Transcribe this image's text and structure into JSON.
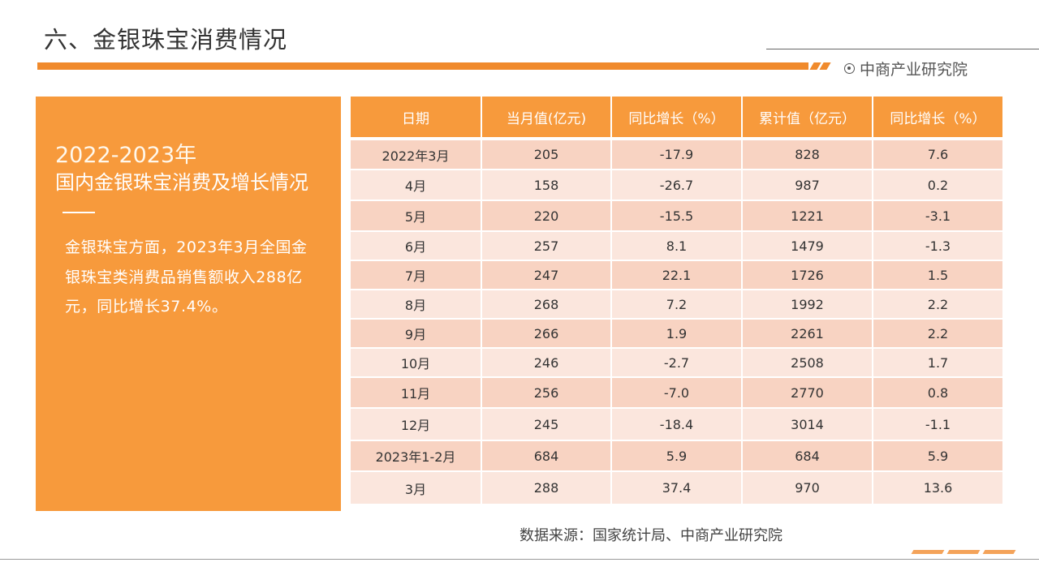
{
  "page": {
    "title": "六、金银珠宝消费情况",
    "brand": "中商产业研究院"
  },
  "panel": {
    "year_range": "2022-2023年",
    "heading": "国内金银珠宝消费及增长情况",
    "body": "金银珠宝方面，2023年3月全国金银珠宝类消费品销售额收入288亿元，同比增长37.4%。"
  },
  "table": {
    "headers": [
      "日期",
      "当月值(亿元)",
      "同比增长（%）",
      "累计值（亿元）",
      "同比增长（%）"
    ],
    "rows": [
      [
        "2022年3月",
        "205",
        "-17.9",
        "828",
        "7.6"
      ],
      [
        "4月",
        "158",
        "-26.7",
        "987",
        "0.2"
      ],
      [
        "5月",
        "220",
        "-15.5",
        "1221",
        "-3.1"
      ],
      [
        "6月",
        "257",
        "8.1",
        "1479",
        "-1.3"
      ],
      [
        "7月",
        "247",
        "22.1",
        "1726",
        "1.5"
      ],
      [
        "8月",
        "268",
        "7.2",
        "1992",
        "2.2"
      ],
      [
        "9月",
        "266",
        "1.9",
        "2261",
        "2.2"
      ],
      [
        "10月",
        "246",
        "-2.7",
        "2508",
        "1.7"
      ],
      [
        "11月",
        "256",
        "-7.0",
        "2770",
        "0.8"
      ],
      [
        "12月",
        "245",
        "-18.4",
        "3014",
        "-1.1"
      ],
      [
        "2023年1-2月",
        "684",
        "5.9",
        "684",
        "5.9"
      ],
      [
        "3月",
        "288",
        "37.4",
        "970",
        "13.6"
      ]
    ]
  },
  "source": "数据来源：国家统计局、中商产业研究院",
  "colors": {
    "accent": "#f79a3c",
    "row_dark": "#f8d3c2",
    "row_light": "#fbe6dd"
  }
}
